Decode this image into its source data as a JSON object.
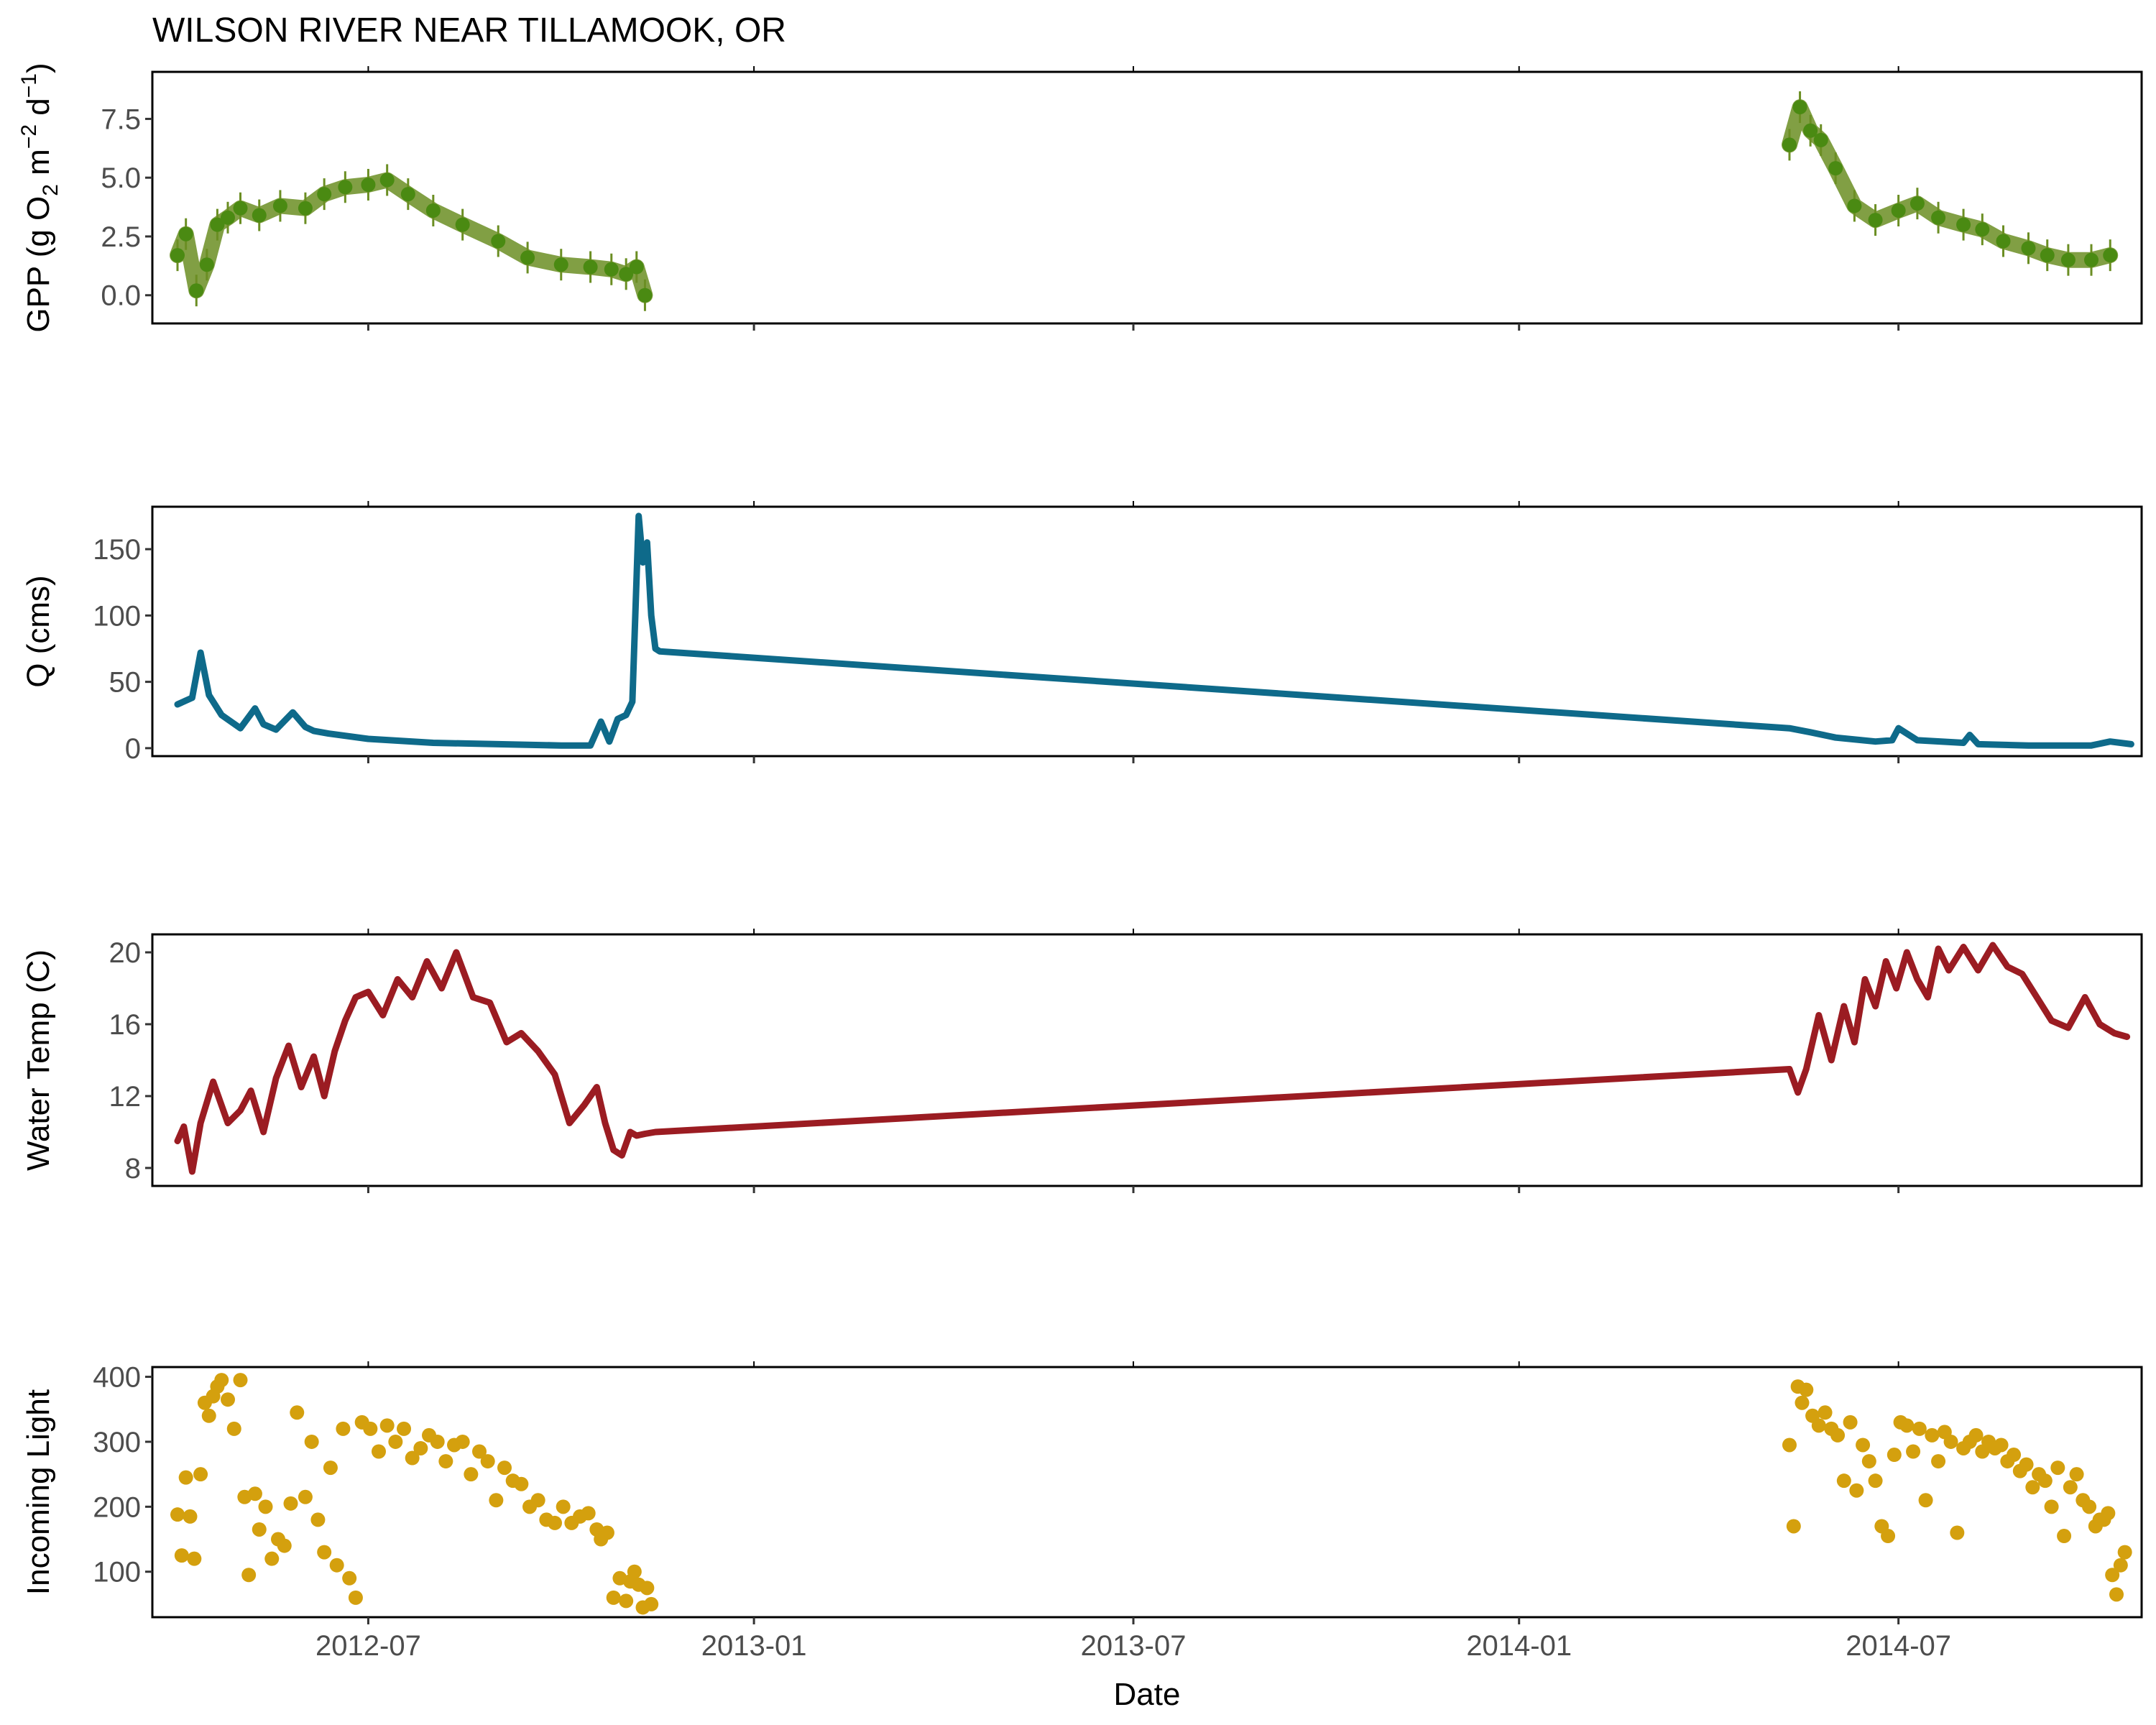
{
  "chart_data": {
    "type": "line",
    "title": "WILSON RIVER NEAR TILLAMOOK, OR",
    "xlabel": "Date",
    "x_axis": {
      "type": "date",
      "range": [
        "2012-03-20",
        "2014-10-25"
      ],
      "ticks": [
        "2012-07",
        "2013-01",
        "2013-07",
        "2014-01",
        "2014-07"
      ]
    },
    "panels": [
      {
        "name": "gpp",
        "type": "scatter",
        "ylabel": "GPP (g  O2 m-2 d-1)",
        "ylabel_parts": {
          "prefix": "GPP (g  O",
          "sub": "2",
          "mid1": " m",
          "sup1": "−2",
          "mid2": " d",
          "sup2": "−1",
          "suffix": ")"
        },
        "ylim": [
          -1.2,
          9.5
        ],
        "yticks": [
          0.0,
          2.5,
          5.0,
          7.5
        ],
        "ytick_labels": [
          "0.0",
          "2.5",
          "5.0",
          "7.5"
        ],
        "color": "#6b8e23",
        "point_color": "#4a8a12",
        "error_bars": true,
        "segments": [
          {
            "x": [
              "2012-04-01",
              "2012-04-05",
              "2012-04-10",
              "2012-04-15",
              "2012-04-20",
              "2012-04-25",
              "2012-05-01",
              "2012-05-10",
              "2012-05-20",
              "2012-06-01",
              "2012-06-10",
              "2012-06-20",
              "2012-07-01",
              "2012-07-10",
              "2012-07-20",
              "2012-08-01",
              "2012-08-15",
              "2012-09-01",
              "2012-09-15",
              "2012-10-01",
              "2012-10-15",
              "2012-10-25",
              "2012-11-01",
              "2012-11-06",
              "2012-11-10"
            ],
            "y": [
              1.7,
              2.6,
              0.2,
              1.3,
              3.0,
              3.3,
              3.7,
              3.4,
              3.8,
              3.7,
              4.3,
              4.6,
              4.7,
              4.9,
              4.3,
              3.6,
              3.0,
              2.3,
              1.6,
              1.3,
              1.2,
              1.1,
              0.9,
              1.2,
              0.0
            ]
          },
          {
            "x": [
              "2014-05-10",
              "2014-05-15",
              "2014-05-20",
              "2014-05-25",
              "2014-06-01",
              "2014-06-10",
              "2014-06-20",
              "2014-07-01",
              "2014-07-10",
              "2014-07-20",
              "2014-08-01",
              "2014-08-10",
              "2014-08-20",
              "2014-09-01",
              "2014-09-10",
              "2014-09-20",
              "2014-10-01",
              "2014-10-10"
            ],
            "y": [
              6.4,
              8.0,
              7.0,
              6.6,
              5.4,
              3.8,
              3.2,
              3.6,
              3.9,
              3.3,
              3.0,
              2.8,
              2.3,
              2.0,
              1.7,
              1.5,
              1.5,
              1.7
            ]
          }
        ]
      },
      {
        "name": "discharge",
        "type": "line",
        "ylabel": "Q (cms)",
        "ylim": [
          -6,
          182
        ],
        "yticks": [
          0,
          50,
          100,
          150
        ],
        "ytick_labels": [
          "0",
          "50",
          "100",
          "150"
        ],
        "color": "#0e6a8a",
        "series": [
          {
            "x": [
              "2012-04-01",
              "2012-04-08",
              "2012-04-12",
              "2012-04-16",
              "2012-04-22",
              "2012-05-01",
              "2012-05-08",
              "2012-05-12",
              "2012-05-18",
              "2012-05-26",
              "2012-06-01",
              "2012-06-05",
              "2012-06-12",
              "2012-07-01",
              "2012-08-01",
              "2012-09-01",
              "2012-10-01",
              "2012-10-15",
              "2012-10-20",
              "2012-10-24",
              "2012-10-28",
              "2012-11-01",
              "2012-11-04",
              "2012-11-07",
              "2012-11-09",
              "2012-11-11",
              "2012-11-13",
              "2012-11-15",
              "2012-11-17",
              "2014-05-10",
              "2014-05-20",
              "2014-06-01",
              "2014-06-20",
              "2014-06-28",
              "2014-07-01",
              "2014-07-10",
              "2014-08-01",
              "2014-08-04",
              "2014-08-08",
              "2014-09-01",
              "2014-10-01",
              "2014-10-10",
              "2014-10-20"
            ],
            "y": [
              33,
              38,
              72,
              40,
              25,
              15,
              30,
              18,
              14,
              27,
              16,
              13,
              11,
              7,
              4,
              3,
              2,
              2,
              20,
              5,
              22,
              25,
              35,
              175,
              140,
              155,
              100,
              75,
              73,
              15,
              12,
              8,
              5,
              6,
              15,
              6,
              4,
              10,
              3,
              2,
              2,
              5,
              3
            ]
          }
        ]
      },
      {
        "name": "water-temp",
        "type": "line",
        "ylabel": "Water Temp (C)",
        "ylim": [
          7,
          21
        ],
        "yticks": [
          8,
          12,
          16,
          20
        ],
        "ytick_labels": [
          "8",
          "12",
          "16",
          "20"
        ],
        "color": "#9b1c22",
        "series": [
          {
            "x": [
              "2012-04-01",
              "2012-04-04",
              "2012-04-08",
              "2012-04-12",
              "2012-04-18",
              "2012-04-25",
              "2012-05-01",
              "2012-05-06",
              "2012-05-12",
              "2012-05-18",
              "2012-05-24",
              "2012-05-30",
              "2012-06-05",
              "2012-06-10",
              "2012-06-15",
              "2012-06-20",
              "2012-06-25",
              "2012-07-01",
              "2012-07-08",
              "2012-07-15",
              "2012-07-22",
              "2012-07-29",
              "2012-08-05",
              "2012-08-12",
              "2012-08-20",
              "2012-08-28",
              "2012-09-05",
              "2012-09-12",
              "2012-09-20",
              "2012-09-28",
              "2012-10-05",
              "2012-10-12",
              "2012-10-18",
              "2012-10-22",
              "2012-10-26",
              "2012-10-30",
              "2012-11-03",
              "2012-11-06",
              "2012-11-10",
              "2012-11-15",
              "2014-05-10",
              "2014-05-14",
              "2014-05-18",
              "2014-05-24",
              "2014-05-30",
              "2014-06-05",
              "2014-06-10",
              "2014-06-15",
              "2014-06-20",
              "2014-06-25",
              "2014-06-30",
              "2014-07-05",
              "2014-07-10",
              "2014-07-15",
              "2014-07-20",
              "2014-07-25",
              "2014-08-01",
              "2014-08-08",
              "2014-08-15",
              "2014-08-22",
              "2014-08-29",
              "2014-09-05",
              "2014-09-12",
              "2014-09-20",
              "2014-09-28",
              "2014-10-05",
              "2014-10-12",
              "2014-10-18"
            ],
            "y": [
              9.5,
              10.3,
              7.8,
              10.5,
              12.8,
              10.5,
              11.2,
              12.3,
              10.0,
              13.0,
              14.8,
              12.5,
              14.2,
              12.0,
              14.5,
              16.2,
              17.5,
              17.8,
              16.5,
              18.5,
              17.5,
              19.5,
              18.0,
              20.0,
              17.5,
              17.2,
              15.0,
              15.5,
              14.5,
              13.2,
              10.5,
              11.5,
              12.5,
              10.5,
              9.0,
              8.7,
              10.0,
              9.8,
              9.9,
              10.0,
              13.5,
              12.2,
              13.5,
              16.5,
              14.0,
              17.0,
              15.0,
              18.5,
              17.0,
              19.5,
              18.0,
              20.0,
              18.5,
              17.5,
              20.2,
              19.0,
              20.3,
              19.0,
              20.4,
              19.2,
              18.8,
              17.5,
              16.2,
              15.8,
              17.5,
              16.0,
              15.5,
              15.3
            ]
          }
        ]
      },
      {
        "name": "incoming-light",
        "type": "scatter",
        "ylabel": "Incoming Light",
        "ylim": [
          30,
          415
        ],
        "yticks": [
          100,
          200,
          300,
          400
        ],
        "ytick_labels": [
          "100",
          "200",
          "300",
          "400"
        ],
        "color": "#d4a00e",
        "segments": [
          {
            "x": [
              "2012-04-01",
              "2012-04-03",
              "2012-04-05",
              "2012-04-07",
              "2012-04-09",
              "2012-04-12",
              "2012-04-14",
              "2012-04-16",
              "2012-04-18",
              "2012-04-20",
              "2012-04-22",
              "2012-04-25",
              "2012-04-28",
              "2012-05-01",
              "2012-05-03",
              "2012-05-05",
              "2012-05-08",
              "2012-05-10",
              "2012-05-13",
              "2012-05-16",
              "2012-05-19",
              "2012-05-22",
              "2012-05-25",
              "2012-05-28",
              "2012-06-01",
              "2012-06-04",
              "2012-06-07",
              "2012-06-10",
              "2012-06-13",
              "2012-06-16",
              "2012-06-19",
              "2012-06-22",
              "2012-06-25",
              "2012-06-28",
              "2012-07-02",
              "2012-07-06",
              "2012-07-10",
              "2012-07-14",
              "2012-07-18",
              "2012-07-22",
              "2012-07-26",
              "2012-07-30",
              "2012-08-03",
              "2012-08-07",
              "2012-08-11",
              "2012-08-15",
              "2012-08-19",
              "2012-08-23",
              "2012-08-27",
              "2012-08-31",
              "2012-09-04",
              "2012-09-08",
              "2012-09-12",
              "2012-09-16",
              "2012-09-20",
              "2012-09-24",
              "2012-09-28",
              "2012-10-02",
              "2012-10-06",
              "2012-10-10",
              "2012-10-14",
              "2012-10-18",
              "2012-10-20",
              "2012-10-23",
              "2012-10-26",
              "2012-10-29",
              "2012-11-01",
              "2012-11-03",
              "2012-11-05",
              "2012-11-07",
              "2012-11-09",
              "2012-11-11",
              "2012-11-13"
            ],
            "y": [
              188,
              125,
              245,
              185,
              120,
              250,
              360,
              340,
              370,
              385,
              395,
              365,
              320,
              395,
              215,
              95,
              220,
              165,
              200,
              120,
              150,
              140,
              205,
              345,
              215,
              300,
              180,
              130,
              260,
              110,
              320,
              90,
              60,
              330,
              320,
              285,
              325,
              300,
              320,
              275,
              290,
              310,
              300,
              270,
              295,
              300,
              250,
              285,
              270,
              210,
              260,
              240,
              235,
              200,
              210,
              180,
              175,
              200,
              175,
              185,
              190,
              165,
              150,
              160,
              60,
              90,
              55,
              85,
              100,
              80,
              45,
              75,
              50
            ]
          },
          {
            "x": [
              "2014-05-10",
              "2014-05-12",
              "2014-05-14",
              "2014-05-16",
              "2014-05-18",
              "2014-05-21",
              "2014-05-24",
              "2014-05-27",
              "2014-05-30",
              "2014-06-02",
              "2014-06-05",
              "2014-06-08",
              "2014-06-11",
              "2014-06-14",
              "2014-06-17",
              "2014-06-20",
              "2014-06-23",
              "2014-06-26",
              "2014-06-29",
              "2014-07-02",
              "2014-07-05",
              "2014-07-08",
              "2014-07-11",
              "2014-07-14",
              "2014-07-17",
              "2014-07-20",
              "2014-07-23",
              "2014-07-26",
              "2014-07-29",
              "2014-08-01",
              "2014-08-04",
              "2014-08-07",
              "2014-08-10",
              "2014-08-13",
              "2014-08-16",
              "2014-08-19",
              "2014-08-22",
              "2014-08-25",
              "2014-08-28",
              "2014-08-31",
              "2014-09-03",
              "2014-09-06",
              "2014-09-09",
              "2014-09-12",
              "2014-09-15",
              "2014-09-18",
              "2014-09-21",
              "2014-09-24",
              "2014-09-27",
              "2014-09-30",
              "2014-10-03",
              "2014-10-05",
              "2014-10-07",
              "2014-10-09",
              "2014-10-11",
              "2014-10-13",
              "2014-10-15",
              "2014-10-17"
            ],
            "y": [
              295,
              170,
              385,
              360,
              380,
              340,
              325,
              345,
              320,
              310,
              240,
              330,
              225,
              295,
              270,
              240,
              170,
              155,
              280,
              330,
              325,
              285,
              320,
              210,
              310,
              270,
              315,
              300,
              160,
              290,
              300,
              310,
              285,
              300,
              290,
              295,
              270,
              280,
              255,
              265,
              230,
              250,
              240,
              200,
              260,
              155,
              230,
              250,
              210,
              200,
              170,
              180,
              180,
              190,
              95,
              65,
              110,
              130
            ]
          }
        ]
      }
    ]
  }
}
